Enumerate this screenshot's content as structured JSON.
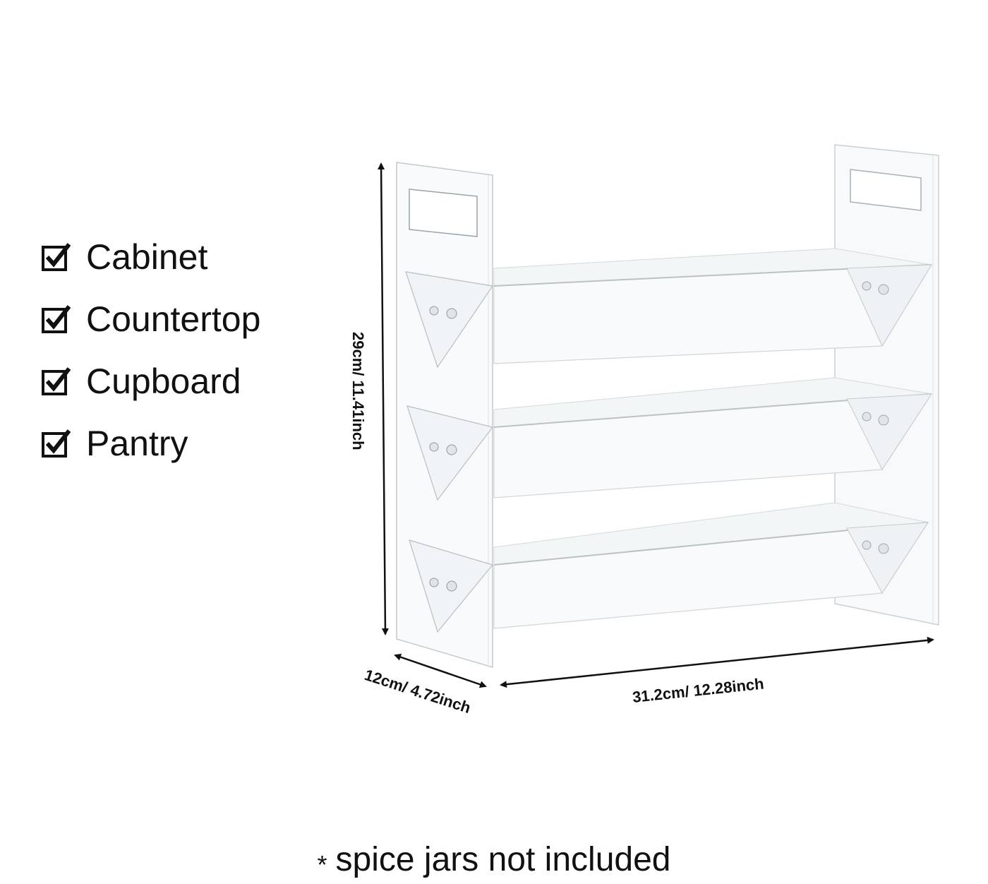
{
  "uses": [
    {
      "label": "Cabinet",
      "icon": "checked-box-icon"
    },
    {
      "label": "Countertop",
      "icon": "checked-box-icon"
    },
    {
      "label": "Cupboard",
      "icon": "checked-box-icon"
    },
    {
      "label": "Pantry",
      "icon": "checked-box-icon"
    }
  ],
  "dimensions": {
    "height": "29cm/ 11.41inch",
    "depth": "12cm/ 4.72inch",
    "width": "31.2cm/ 12.28inch"
  },
  "note": {
    "star": "*",
    "text": "spice jars not included"
  }
}
